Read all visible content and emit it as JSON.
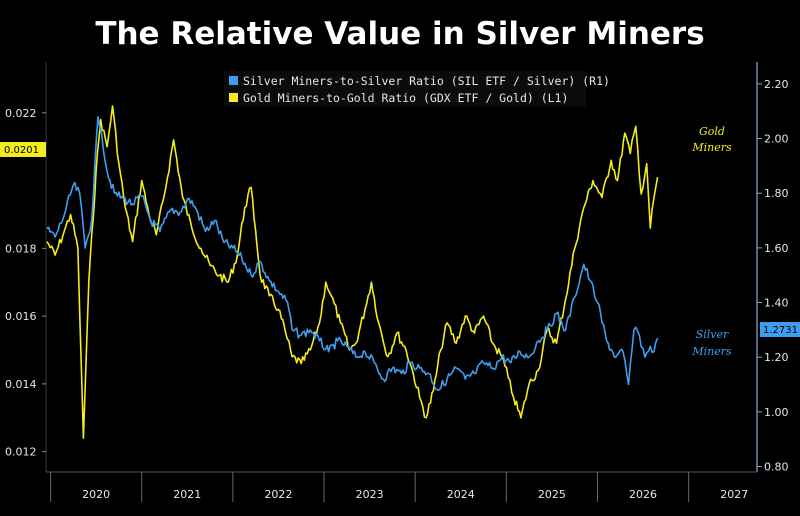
{
  "chart_data": {
    "type": "line",
    "title": "The Relative Value in Silver Miners",
    "x_ticks": [
      "2020",
      "2021",
      "2022",
      "2023",
      "2024",
      "2025",
      "2026",
      "2027"
    ],
    "x_range": [
      2019.45,
      2027.25
    ],
    "y_left": {
      "ticks": [
        "0.012",
        "0.014",
        "0.016",
        "0.018",
        "0.022"
      ],
      "range": [
        0.0114,
        0.0235
      ]
    },
    "y_right": {
      "ticks": [
        "0.80",
        "1.00",
        "1.20",
        "1.40",
        "1.60",
        "1.80",
        "2.00",
        "2.20"
      ],
      "range": [
        0.78,
        2.28
      ]
    },
    "series": [
      {
        "name": "Silver Miners-to-Silver Ratio (SIL ETF / Silver) (R1)",
        "axis": "right",
        "color": "#3d9ef0",
        "last_value_label": "1.2731",
        "annotation": [
          "Silver",
          "Miners"
        ],
        "points": [
          [
            2019.46,
            1.67
          ],
          [
            2019.55,
            1.64
          ],
          [
            2019.65,
            1.72
          ],
          [
            2019.75,
            1.83
          ],
          [
            2019.82,
            1.8
          ],
          [
            2019.88,
            1.6
          ],
          [
            2019.95,
            1.7
          ],
          [
            2020.02,
            2.08
          ],
          [
            2020.06,
            2.02
          ],
          [
            2020.12,
            1.88
          ],
          [
            2020.2,
            1.8
          ],
          [
            2020.3,
            1.78
          ],
          [
            2020.4,
            1.76
          ],
          [
            2020.5,
            1.79
          ],
          [
            2020.6,
            1.7
          ],
          [
            2020.7,
            1.66
          ],
          [
            2020.82,
            1.74
          ],
          [
            2020.92,
            1.73
          ],
          [
            2021.02,
            1.78
          ],
          [
            2021.1,
            1.74
          ],
          [
            2021.2,
            1.66
          ],
          [
            2021.3,
            1.7
          ],
          [
            2021.4,
            1.62
          ],
          [
            2021.5,
            1.6
          ],
          [
            2021.6,
            1.56
          ],
          [
            2021.7,
            1.5
          ],
          [
            2021.8,
            1.55
          ],
          [
            2021.9,
            1.48
          ],
          [
            2022.0,
            1.44
          ],
          [
            2022.1,
            1.4
          ],
          [
            2022.15,
            1.3
          ],
          [
            2022.25,
            1.28
          ],
          [
            2022.35,
            1.3
          ],
          [
            2022.45,
            1.26
          ],
          [
            2022.55,
            1.22
          ],
          [
            2022.65,
            1.26
          ],
          [
            2022.75,
            1.24
          ],
          [
            2022.85,
            1.2
          ],
          [
            2022.95,
            1.22
          ],
          [
            2023.05,
            1.18
          ],
          [
            2023.15,
            1.12
          ],
          [
            2023.25,
            1.16
          ],
          [
            2023.35,
            1.14
          ],
          [
            2023.45,
            1.18
          ],
          [
            2023.55,
            1.16
          ],
          [
            2023.65,
            1.14
          ],
          [
            2023.75,
            1.08
          ],
          [
            2023.85,
            1.12
          ],
          [
            2023.95,
            1.16
          ],
          [
            2024.05,
            1.12
          ],
          [
            2024.15,
            1.14
          ],
          [
            2024.25,
            1.18
          ],
          [
            2024.35,
            1.16
          ],
          [
            2024.45,
            1.2
          ],
          [
            2024.55,
            1.18
          ],
          [
            2024.65,
            1.22
          ],
          [
            2024.75,
            1.2
          ],
          [
            2024.85,
            1.26
          ],
          [
            2024.95,
            1.3
          ],
          [
            2025.05,
            1.36
          ],
          [
            2025.15,
            1.3
          ],
          [
            2025.25,
            1.42
          ],
          [
            2025.35,
            1.54
          ],
          [
            2025.42,
            1.48
          ],
          [
            2025.5,
            1.4
          ],
          [
            2025.6,
            1.26
          ],
          [
            2025.7,
            1.2
          ],
          [
            2025.78,
            1.22
          ],
          [
            2025.84,
            1.1
          ],
          [
            2025.9,
            1.3
          ],
          [
            2025.96,
            1.28
          ],
          [
            2026.02,
            1.2
          ],
          [
            2026.08,
            1.24
          ],
          [
            2026.12,
            1.22
          ],
          [
            2026.16,
            1.27
          ]
        ]
      },
      {
        "name": "Gold Miners-to-Gold Ratio (GDX ETF / Gold) (L1)",
        "axis": "left",
        "color": "#f4ec1c",
        "last_value_label": "0.0201",
        "annotation": [
          "Gold",
          "Miners"
        ],
        "points": [
          [
            2019.46,
            0.0182
          ],
          [
            2019.55,
            0.0178
          ],
          [
            2019.65,
            0.0185
          ],
          [
            2019.72,
            0.019
          ],
          [
            2019.8,
            0.018
          ],
          [
            2019.86,
            0.0124
          ],
          [
            2019.92,
            0.017
          ],
          [
            2020.0,
            0.0203
          ],
          [
            2020.05,
            0.0218
          ],
          [
            2020.12,
            0.021
          ],
          [
            2020.18,
            0.0222
          ],
          [
            2020.25,
            0.0205
          ],
          [
            2020.32,
            0.0192
          ],
          [
            2020.4,
            0.0182
          ],
          [
            2020.5,
            0.02
          ],
          [
            2020.58,
            0.019
          ],
          [
            2020.66,
            0.0184
          ],
          [
            2020.75,
            0.0196
          ],
          [
            2020.85,
            0.0212
          ],
          [
            2020.95,
            0.0195
          ],
          [
            2021.05,
            0.0186
          ],
          [
            2021.15,
            0.018
          ],
          [
            2021.25,
            0.0175
          ],
          [
            2021.35,
            0.0172
          ],
          [
            2021.45,
            0.017
          ],
          [
            2021.55,
            0.0178
          ],
          [
            2021.63,
            0.0192
          ],
          [
            2021.7,
            0.0198
          ],
          [
            2021.75,
            0.0185
          ],
          [
            2021.8,
            0.0172
          ],
          [
            2021.9,
            0.0166
          ],
          [
            2022.0,
            0.0162
          ],
          [
            2022.08,
            0.0155
          ],
          [
            2022.15,
            0.0148
          ],
          [
            2022.25,
            0.0146
          ],
          [
            2022.35,
            0.015
          ],
          [
            2022.45,
            0.0158
          ],
          [
            2022.52,
            0.017
          ],
          [
            2022.58,
            0.0166
          ],
          [
            2022.68,
            0.0158
          ],
          [
            2022.78,
            0.015
          ],
          [
            2022.85,
            0.0152
          ],
          [
            2022.95,
            0.0162
          ],
          [
            2023.02,
            0.017
          ],
          [
            2023.1,
            0.0158
          ],
          [
            2023.2,
            0.0148
          ],
          [
            2023.3,
            0.0155
          ],
          [
            2023.4,
            0.015
          ],
          [
            2023.48,
            0.0143
          ],
          [
            2023.55,
            0.0136
          ],
          [
            2023.62,
            0.013
          ],
          [
            2023.7,
            0.0138
          ],
          [
            2023.78,
            0.015
          ],
          [
            2023.85,
            0.0158
          ],
          [
            2023.95,
            0.0152
          ],
          [
            2024.05,
            0.016
          ],
          [
            2024.15,
            0.0155
          ],
          [
            2024.25,
            0.016
          ],
          [
            2024.35,
            0.0152
          ],
          [
            2024.45,
            0.0148
          ],
          [
            2024.52,
            0.0142
          ],
          [
            2024.58,
            0.0136
          ],
          [
            2024.66,
            0.013
          ],
          [
            2024.75,
            0.014
          ],
          [
            2024.85,
            0.0144
          ],
          [
            2024.95,
            0.0156
          ],
          [
            2025.05,
            0.0152
          ],
          [
            2025.15,
            0.0165
          ],
          [
            2025.25,
            0.018
          ],
          [
            2025.35,
            0.0192
          ],
          [
            2025.45,
            0.02
          ],
          [
            2025.55,
            0.0195
          ],
          [
            2025.65,
            0.0206
          ],
          [
            2025.72,
            0.02
          ],
          [
            2025.8,
            0.0214
          ],
          [
            2025.86,
            0.0208
          ],
          [
            2025.92,
            0.0216
          ],
          [
            2025.98,
            0.0196
          ],
          [
            2026.04,
            0.0205
          ],
          [
            2026.08,
            0.0186
          ],
          [
            2026.12,
            0.0195
          ],
          [
            2026.16,
            0.0201
          ]
        ]
      }
    ],
    "grid": false,
    "legend": "top-center"
  }
}
